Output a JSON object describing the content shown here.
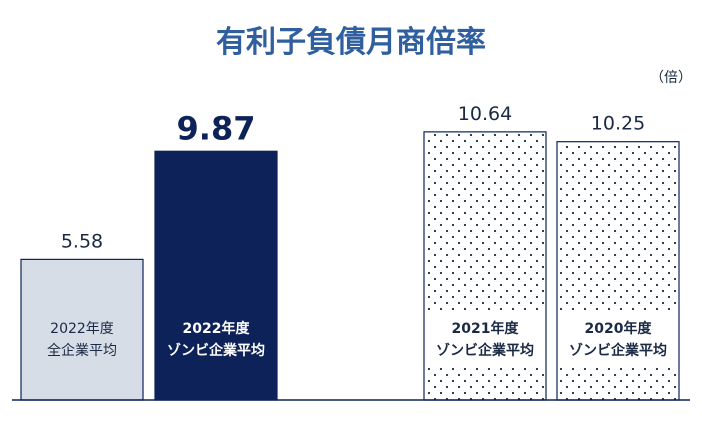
{
  "chart_data": {
    "type": "bar",
    "title": "有利子負債月商倍率",
    "unit": "（倍）",
    "categories": [
      {
        "line1": "2022年度",
        "line2": "全企業平均"
      },
      {
        "line1": "2022年度",
        "line2": "ゾンビ企業平均"
      },
      {
        "line1": "2021年度",
        "line2": "ゾンビ企業平均"
      },
      {
        "line1": "2020年度",
        "line2": "ゾンビ企業平均"
      }
    ],
    "values": [
      5.58,
      9.87,
      10.64,
      10.25
    ],
    "value_labels": [
      "5.58",
      "9.87",
      "10.64",
      "10.25"
    ],
    "styles": [
      "light",
      "dark",
      "dotted",
      "dotted"
    ],
    "colors": {
      "title": "#2f5f9e",
      "light_fill": "#d7dde6",
      "dark_fill": "#0d2259",
      "bar_stroke": "#0d2259",
      "text": "#1a2a44",
      "dark_text": "#ffffff",
      "baseline": "#0d2259"
    },
    "ylim": [
      0,
      11
    ]
  }
}
